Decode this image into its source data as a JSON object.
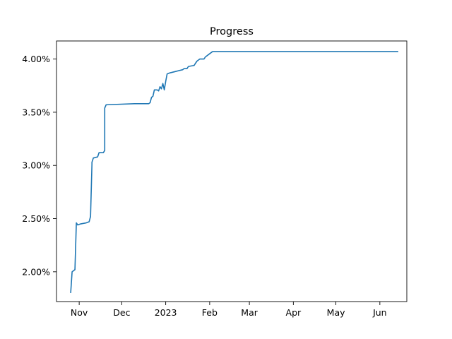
{
  "chart_data": {
    "type": "line",
    "title": "Progress",
    "xlabel": "",
    "ylabel": "",
    "grid": false,
    "x_range": [
      "2022-10-16",
      "2023-06-20"
    ],
    "ylim": [
      1.72,
      4.17
    ],
    "x_ticks": [
      {
        "date": "2022-11-01",
        "label": "Nov"
      },
      {
        "date": "2022-12-01",
        "label": "Dec"
      },
      {
        "date": "2023-01-01",
        "label": "2023"
      },
      {
        "date": "2023-02-01",
        "label": "Feb"
      },
      {
        "date": "2023-03-01",
        "label": "Mar"
      },
      {
        "date": "2023-04-01",
        "label": "Apr"
      },
      {
        "date": "2023-05-01",
        "label": "May"
      },
      {
        "date": "2023-06-01",
        "label": "Jun"
      }
    ],
    "y_ticks": [
      {
        "value": 2.0,
        "label": "2.00%"
      },
      {
        "value": 2.5,
        "label": "2.50%"
      },
      {
        "value": 3.0,
        "label": "3.00%"
      },
      {
        "value": 3.5,
        "label": "3.50%"
      },
      {
        "value": 4.0,
        "label": "4.00%"
      }
    ],
    "series": [
      {
        "color": "#1f77b4",
        "points": [
          [
            "2022-10-26",
            1.8
          ],
          [
            "2022-10-27",
            2.0
          ],
          [
            "2022-10-28",
            2.01
          ],
          [
            "2022-10-29",
            2.02
          ],
          [
            "2022-10-30",
            2.46
          ],
          [
            "2022-10-31",
            2.44
          ],
          [
            "2022-11-02",
            2.45
          ],
          [
            "2022-11-06",
            2.46
          ],
          [
            "2022-11-08",
            2.47
          ],
          [
            "2022-11-09",
            2.52
          ],
          [
            "2022-11-10",
            3.01
          ],
          [
            "2022-11-10",
            3.03
          ],
          [
            "2022-11-11",
            3.07
          ],
          [
            "2022-11-14",
            3.08
          ],
          [
            "2022-11-15",
            3.12
          ],
          [
            "2022-11-18",
            3.12
          ],
          [
            "2022-11-19",
            3.14
          ],
          [
            "2022-11-19",
            3.54
          ],
          [
            "2022-11-20",
            3.57
          ],
          [
            "2022-12-10",
            3.58
          ],
          [
            "2022-12-20",
            3.58
          ],
          [
            "2022-12-21",
            3.59
          ],
          [
            "2022-12-22",
            3.64
          ],
          [
            "2022-12-23",
            3.65
          ],
          [
            "2022-12-24",
            3.71
          ],
          [
            "2022-12-26",
            3.71
          ],
          [
            "2022-12-27",
            3.7
          ],
          [
            "2022-12-28",
            3.74
          ],
          [
            "2022-12-29",
            3.72
          ],
          [
            "2022-12-30",
            3.77
          ],
          [
            "2022-12-31",
            3.71
          ],
          [
            "2023-01-01",
            3.79
          ],
          [
            "2023-01-02",
            3.86
          ],
          [
            "2023-01-04",
            3.87
          ],
          [
            "2023-01-07",
            3.88
          ],
          [
            "2023-01-13",
            3.9
          ],
          [
            "2023-01-14",
            3.91
          ],
          [
            "2023-01-16",
            3.91
          ],
          [
            "2023-01-17",
            3.93
          ],
          [
            "2023-01-21",
            3.94
          ],
          [
            "2023-01-22",
            3.96
          ],
          [
            "2023-01-23",
            3.98
          ],
          [
            "2023-01-25",
            4.0
          ],
          [
            "2023-01-28",
            4.0
          ],
          [
            "2023-01-29",
            4.02
          ],
          [
            "2023-02-01",
            4.05
          ],
          [
            "2023-02-03",
            4.07
          ],
          [
            "2023-03-15",
            4.07
          ],
          [
            "2023-06-14",
            4.07
          ]
        ]
      }
    ]
  }
}
